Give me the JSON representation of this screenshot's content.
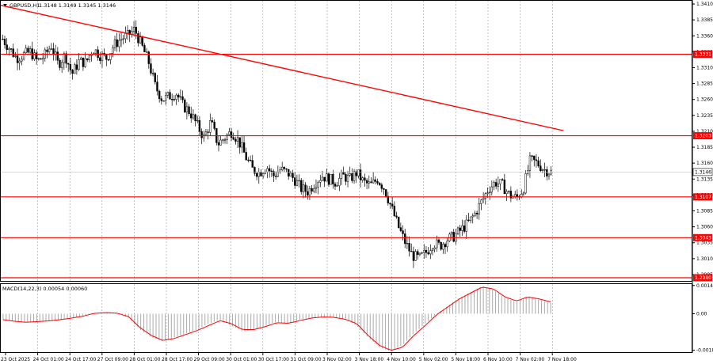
{
  "header": {
    "symbol_text": "GBPUSD,H1",
    "ohlc_text": "1.3148 1.3149 1.3145 1.3146"
  },
  "colors": {
    "background": "#ffffff",
    "grid": "#9a9a9a",
    "candle": "#000000",
    "level_line": "#ff0000",
    "trend_line": "#ff0000",
    "macd_hist": "#a9a9a9",
    "macd_signal": "#ff0000"
  },
  "chart_data": [
    {
      "type": "candlestick",
      "title": "GBPUSD,H1",
      "ylim": [
        1.2975,
        1.3415
      ],
      "y_ticks": [
        "1.3410",
        "1.3385",
        "1.3360",
        "1.3335",
        "1.3310",
        "1.3285",
        "1.3260",
        "1.3235",
        "1.3210",
        "1.3185",
        "1.3160",
        "1.3135",
        "1.3110",
        "1.3085",
        "1.3060",
        "1.3035",
        "1.3010",
        "1.2985"
      ],
      "x_ticks": [
        "23 Oct 2025",
        "24 Oct 01:00",
        "24 Oct 17:00",
        "27 Oct 09:00",
        "28 Oct 01:00",
        "28 Oct 17:00",
        "29 Oct 09:00",
        "30 Oct 01:00",
        "30 Oct 17:00",
        "31 Oct 09:00",
        "3 Nov 02:00",
        "3 Nov 18:00",
        "4 Nov 10:00",
        "5 Nov 02:00",
        "5 Nov 18:00",
        "6 Nov 10:00",
        "7 Nov 02:00",
        "7 Nov 18:00"
      ],
      "grid": true,
      "price_path": [
        1.3355,
        1.334,
        1.3325,
        1.333,
        1.3335,
        1.332,
        1.3328,
        1.3345,
        1.3315,
        1.333,
        1.33,
        1.332,
        1.3318,
        1.334,
        1.333,
        1.3325,
        1.3345,
        1.3355,
        1.336,
        1.337,
        1.3345,
        1.332,
        1.328,
        1.326,
        1.3265,
        1.327,
        1.325,
        1.324,
        1.322,
        1.32,
        1.3225,
        1.319,
        1.32,
        1.321,
        1.3195,
        1.317,
        1.315,
        1.3145,
        1.3155,
        1.314,
        1.315,
        1.3145,
        1.3135,
        1.312,
        1.3115,
        1.313,
        1.314,
        1.3135,
        1.313,
        1.314,
        1.3135,
        1.3145,
        1.313,
        1.3125,
        1.3135,
        1.312,
        1.309,
        1.306,
        1.3035,
        1.3015,
        1.301,
        1.302,
        1.3035,
        1.303,
        1.304,
        1.3045,
        1.3055,
        1.3065,
        1.308,
        1.31,
        1.312,
        1.313,
        1.3125,
        1.311,
        1.3105,
        1.312,
        1.3165,
        1.316,
        1.315,
        1.3146
      ],
      "levels": [
        {
          "price": 1.3331,
          "label": "1.3331"
        },
        {
          "price": 1.3203,
          "label": "1.3203"
        },
        {
          "price": 1.3107,
          "label": "1.3107"
        },
        {
          "price": 1.3043,
          "label": "1.3043"
        },
        {
          "price": 1.298,
          "label": "1.2980"
        }
      ],
      "current_price": {
        "price": 1.3146,
        "label": "1.3146"
      },
      "trend_line": {
        "from": {
          "x_index": 0,
          "price": 1.3408
        },
        "to": {
          "x_index": 17.35,
          "price": 1.3211
        }
      }
    },
    {
      "type": "histogram",
      "title": "MACD(14,22,3) 0.00054 0.00060",
      "ylim": [
        -0.00194,
        0.0015
      ],
      "y_ticks": [
        "0.00143",
        "0.00",
        "-0.00184"
      ],
      "series": [
        {
          "name": "MACD",
          "values": [
            -0.0003,
            -0.0004,
            -0.00045,
            -0.0004,
            -0.00035,
            -0.0003,
            -0.0002,
            -0.0001,
            5e-05,
            8e-05,
            4e-05,
            -0.0002,
            -0.0008,
            -0.0012,
            -0.0014,
            -0.0012,
            -0.001,
            -0.0008,
            -0.0005,
            -0.0003,
            -0.0006,
            -0.0009,
            -0.0008,
            -0.0006,
            -0.0004,
            -0.0005,
            -0.0003,
            -0.0002,
            -0.00015,
            -0.0002,
            -0.0003,
            -0.0006,
            -0.0012,
            -0.0017,
            -0.0019,
            -0.0016,
            -0.001,
            -0.0005,
            0.0,
            0.0004,
            0.0008,
            0.0011,
            0.0014,
            0.0012,
            0.0008,
            0.0006,
            0.0009,
            0.0007,
            0.00054
          ]
        },
        {
          "name": "Signal",
          "values": [
            -0.0003,
            -0.00038,
            -0.00043,
            -0.0004,
            -0.00036,
            -0.0003,
            -0.00022,
            -0.00012,
            2e-05,
            6e-05,
            3e-05,
            -0.00015,
            -0.0007,
            -0.0011,
            -0.00135,
            -0.00125,
            -0.00105,
            -0.00085,
            -0.0006,
            -0.00035,
            -0.0005,
            -0.0008,
            -0.0008,
            -0.00065,
            -0.00045,
            -0.00048,
            -0.00035,
            -0.00022,
            -0.00016,
            -0.00018,
            -0.00028,
            -0.0005,
            -0.0011,
            -0.0016,
            -0.00185,
            -0.0017,
            -0.0011,
            -0.0006,
            -5e-05,
            0.00035,
            0.00075,
            0.00105,
            0.00135,
            0.00125,
            0.00085,
            0.00065,
            0.00085,
            0.00075,
            0.0006
          ]
        }
      ]
    }
  ]
}
